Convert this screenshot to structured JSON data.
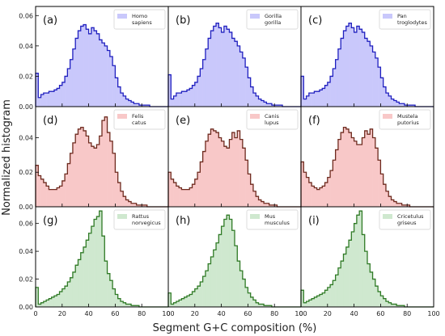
{
  "figure": {
    "ylabel": "Normalized histogram",
    "xlabel": "Segment G+C composition (%)"
  },
  "colors": {
    "primates_fill": "#c9c8fb",
    "primates_line": "#1f1fbf",
    "carnivores_fill": "#f8c8c8",
    "carnivores_line": "#6e2a1e",
    "rodents_fill": "#cfe8cf",
    "rodents_line": "#2f7a25"
  },
  "chart_data": [
    {
      "type": "area",
      "panel": "(a)",
      "row": 0,
      "col": 0,
      "group": "primates",
      "legend": [
        "Homo",
        "sapiens"
      ],
      "xlim": [
        0,
        100
      ],
      "ylim": [
        0,
        0.066
      ],
      "yticks": [
        "0.00",
        "0.02",
        "0.04",
        "0.06"
      ],
      "ytick_values": [
        0,
        0.02,
        0.04,
        0.06
      ],
      "xticks": [],
      "bin_width": 2,
      "x": [
        0,
        2,
        4,
        6,
        8,
        10,
        12,
        14,
        16,
        18,
        20,
        22,
        24,
        26,
        28,
        30,
        32,
        34,
        36,
        38,
        40,
        42,
        44,
        46,
        48,
        50,
        52,
        54,
        56,
        58,
        60,
        62,
        64,
        66,
        68,
        70,
        72,
        74,
        76,
        78,
        80,
        82,
        84,
        86,
        88,
        90,
        92,
        94,
        96,
        98
      ],
      "values": [
        0.022,
        0.006,
        0.008,
        0.009,
        0.009,
        0.01,
        0.01,
        0.011,
        0.012,
        0.014,
        0.016,
        0.02,
        0.025,
        0.031,
        0.038,
        0.045,
        0.05,
        0.053,
        0.054,
        0.051,
        0.048,
        0.052,
        0.05,
        0.048,
        0.044,
        0.042,
        0.04,
        0.037,
        0.033,
        0.027,
        0.019,
        0.013,
        0.009,
        0.007,
        0.005,
        0.004,
        0.003,
        0.002,
        0.002,
        0.001,
        0.001,
        0.001,
        0.001,
        0.0,
        0.0,
        0.0,
        0.0,
        0.0,
        0.0,
        0.0
      ]
    },
    {
      "type": "area",
      "panel": "(b)",
      "row": 0,
      "col": 1,
      "group": "primates",
      "legend": [
        "Gorilla",
        "gorilla"
      ],
      "xlim": [
        0,
        100
      ],
      "ylim": [
        0,
        0.066
      ],
      "yticks": [],
      "ytick_values": [],
      "xticks": [],
      "bin_width": 2,
      "x": [
        0,
        2,
        4,
        6,
        8,
        10,
        12,
        14,
        16,
        18,
        20,
        22,
        24,
        26,
        28,
        30,
        32,
        34,
        36,
        38,
        40,
        42,
        44,
        46,
        48,
        50,
        52,
        54,
        56,
        58,
        60,
        62,
        64,
        66,
        68,
        70,
        72,
        74,
        76,
        78,
        80,
        82,
        84,
        86,
        88,
        90,
        92,
        94,
        96,
        98
      ],
      "values": [
        0.021,
        0.005,
        0.007,
        0.009,
        0.009,
        0.01,
        0.01,
        0.011,
        0.012,
        0.014,
        0.016,
        0.02,
        0.025,
        0.031,
        0.038,
        0.045,
        0.05,
        0.053,
        0.055,
        0.052,
        0.049,
        0.053,
        0.051,
        0.049,
        0.045,
        0.043,
        0.04,
        0.036,
        0.032,
        0.026,
        0.019,
        0.013,
        0.009,
        0.007,
        0.005,
        0.004,
        0.003,
        0.002,
        0.002,
        0.001,
        0.001,
        0.001,
        0.001,
        0.0,
        0.0,
        0.0,
        0.0,
        0.0,
        0.0,
        0.0
      ]
    },
    {
      "type": "area",
      "panel": "(c)",
      "row": 0,
      "col": 2,
      "group": "primates",
      "legend": [
        "Pan",
        "troglodytes"
      ],
      "xlim": [
        0,
        100
      ],
      "ylim": [
        0,
        0.066
      ],
      "yticks": [],
      "ytick_values": [],
      "xticks": [],
      "bin_width": 2,
      "x": [
        0,
        2,
        4,
        6,
        8,
        10,
        12,
        14,
        16,
        18,
        20,
        22,
        24,
        26,
        28,
        30,
        32,
        34,
        36,
        38,
        40,
        42,
        44,
        46,
        48,
        50,
        52,
        54,
        56,
        58,
        60,
        62,
        64,
        66,
        68,
        70,
        72,
        74,
        76,
        78,
        80,
        82,
        84,
        86,
        88,
        90,
        92,
        94,
        96,
        98
      ],
      "values": [
        0.02,
        0.005,
        0.007,
        0.009,
        0.009,
        0.01,
        0.01,
        0.011,
        0.012,
        0.014,
        0.016,
        0.02,
        0.025,
        0.031,
        0.038,
        0.045,
        0.05,
        0.053,
        0.055,
        0.052,
        0.049,
        0.053,
        0.051,
        0.049,
        0.045,
        0.043,
        0.04,
        0.036,
        0.032,
        0.026,
        0.019,
        0.013,
        0.009,
        0.007,
        0.005,
        0.004,
        0.003,
        0.002,
        0.002,
        0.001,
        0.001,
        0.001,
        0.001,
        0.0,
        0.0,
        0.0,
        0.0,
        0.0,
        0.0,
        0.0
      ]
    },
    {
      "type": "area",
      "panel": "(d)",
      "row": 1,
      "col": 0,
      "group": "carnivores",
      "legend": [
        "Felis",
        "catus"
      ],
      "xlim": [
        0,
        100
      ],
      "ylim": [
        0,
        0.058
      ],
      "yticks": [
        "0.00",
        "0.02",
        "0.04"
      ],
      "ytick_values": [
        0,
        0.02,
        0.04
      ],
      "xticks": [],
      "bin_width": 2,
      "x": [
        0,
        2,
        4,
        6,
        8,
        10,
        12,
        14,
        16,
        18,
        20,
        22,
        24,
        26,
        28,
        30,
        32,
        34,
        36,
        38,
        40,
        42,
        44,
        46,
        48,
        50,
        52,
        54,
        56,
        58,
        60,
        62,
        64,
        66,
        68,
        70,
        72,
        74,
        76,
        78,
        80,
        82,
        84,
        86,
        88,
        90,
        92,
        94,
        96,
        98
      ],
      "values": [
        0.024,
        0.018,
        0.016,
        0.014,
        0.012,
        0.01,
        0.01,
        0.01,
        0.011,
        0.012,
        0.015,
        0.019,
        0.025,
        0.031,
        0.037,
        0.042,
        0.045,
        0.046,
        0.044,
        0.041,
        0.037,
        0.035,
        0.034,
        0.036,
        0.041,
        0.05,
        0.052,
        0.043,
        0.038,
        0.031,
        0.02,
        0.014,
        0.009,
        0.006,
        0.004,
        0.003,
        0.002,
        0.002,
        0.001,
        0.001,
        0.001,
        0.001,
        0.0,
        0.0,
        0.0,
        0.0,
        0.0,
        0.0,
        0.0,
        0.0
      ]
    },
    {
      "type": "area",
      "panel": "(e)",
      "row": 1,
      "col": 1,
      "group": "carnivores",
      "legend": [
        "Canis",
        "lupus"
      ],
      "xlim": [
        0,
        100
      ],
      "ylim": [
        0,
        0.058
      ],
      "yticks": [],
      "ytick_values": [],
      "xticks": [],
      "bin_width": 2,
      "x": [
        0,
        2,
        4,
        6,
        8,
        10,
        12,
        14,
        16,
        18,
        20,
        22,
        24,
        26,
        28,
        30,
        32,
        34,
        36,
        38,
        40,
        42,
        44,
        46,
        48,
        50,
        52,
        54,
        56,
        58,
        60,
        62,
        64,
        66,
        68,
        70,
        72,
        74,
        76,
        78,
        80,
        82,
        84,
        86,
        88,
        90,
        92,
        94,
        96,
        98
      ],
      "values": [
        0.02,
        0.016,
        0.014,
        0.012,
        0.011,
        0.01,
        0.01,
        0.01,
        0.011,
        0.013,
        0.016,
        0.02,
        0.026,
        0.032,
        0.038,
        0.042,
        0.045,
        0.044,
        0.043,
        0.04,
        0.038,
        0.035,
        0.034,
        0.039,
        0.043,
        0.04,
        0.044,
        0.039,
        0.034,
        0.027,
        0.019,
        0.013,
        0.009,
        0.006,
        0.004,
        0.003,
        0.002,
        0.002,
        0.001,
        0.001,
        0.001,
        0.0,
        0.0,
        0.0,
        0.0,
        0.0,
        0.0,
        0.0,
        0.0,
        0.0
      ]
    },
    {
      "type": "area",
      "panel": "(f)",
      "row": 1,
      "col": 2,
      "group": "carnivores",
      "legend": [
        "Mustela",
        "putorius"
      ],
      "xlim": [
        0,
        100
      ],
      "ylim": [
        0,
        0.058
      ],
      "yticks": [],
      "ytick_values": [],
      "xticks": [],
      "bin_width": 2,
      "x": [
        0,
        2,
        4,
        6,
        8,
        10,
        12,
        14,
        16,
        18,
        20,
        22,
        24,
        26,
        28,
        30,
        32,
        34,
        36,
        38,
        40,
        42,
        44,
        46,
        48,
        50,
        52,
        54,
        56,
        58,
        60,
        62,
        64,
        66,
        68,
        70,
        72,
        74,
        76,
        78,
        80,
        82,
        84,
        86,
        88,
        90,
        92,
        94,
        96,
        98
      ],
      "values": [
        0.026,
        0.02,
        0.017,
        0.014,
        0.012,
        0.011,
        0.01,
        0.011,
        0.012,
        0.014,
        0.017,
        0.021,
        0.027,
        0.033,
        0.039,
        0.043,
        0.046,
        0.045,
        0.043,
        0.04,
        0.038,
        0.036,
        0.036,
        0.04,
        0.044,
        0.042,
        0.045,
        0.04,
        0.034,
        0.027,
        0.019,
        0.013,
        0.009,
        0.006,
        0.004,
        0.003,
        0.002,
        0.002,
        0.001,
        0.001,
        0.001,
        0.0,
        0.0,
        0.0,
        0.0,
        0.0,
        0.0,
        0.0,
        0.0,
        0.0
      ]
    },
    {
      "type": "area",
      "panel": "(g)",
      "row": 2,
      "col": 0,
      "group": "rodents",
      "legend": [
        "Rattus",
        "norvegicus"
      ],
      "xlim": [
        0,
        100
      ],
      "ylim": [
        0,
        0.072
      ],
      "yticks": [
        "0.00",
        "0.02",
        "0.04",
        "0.06"
      ],
      "ytick_values": [
        0,
        0.02,
        0.04,
        0.06
      ],
      "xticks": [
        "0",
        "20",
        "40",
        "60",
        "80",
        "100"
      ],
      "xtick_values": [
        0,
        20,
        40,
        60,
        80,
        100
      ],
      "bin_width": 2,
      "x": [
        0,
        2,
        4,
        6,
        8,
        10,
        12,
        14,
        16,
        18,
        20,
        22,
        24,
        26,
        28,
        30,
        32,
        34,
        36,
        38,
        40,
        42,
        44,
        46,
        48,
        50,
        52,
        54,
        56,
        58,
        60,
        62,
        64,
        66,
        68,
        70,
        72,
        74,
        76,
        78,
        80,
        82,
        84,
        86,
        88,
        90,
        92,
        94,
        96,
        98
      ],
      "values": [
        0.014,
        0.002,
        0.003,
        0.004,
        0.005,
        0.006,
        0.007,
        0.008,
        0.009,
        0.011,
        0.013,
        0.015,
        0.018,
        0.021,
        0.025,
        0.03,
        0.034,
        0.039,
        0.043,
        0.048,
        0.053,
        0.058,
        0.063,
        0.065,
        0.069,
        0.051,
        0.033,
        0.024,
        0.019,
        0.013,
        0.009,
        0.006,
        0.004,
        0.003,
        0.002,
        0.002,
        0.001,
        0.001,
        0.001,
        0.0,
        0.0,
        0.0,
        0.0,
        0.0,
        0.0,
        0.0,
        0.0,
        0.0,
        0.0,
        0.0
      ]
    },
    {
      "type": "area",
      "panel": "(h)",
      "row": 2,
      "col": 1,
      "group": "rodents",
      "legend": [
        "Mus",
        "musculus"
      ],
      "xlim": [
        0,
        100
      ],
      "ylim": [
        0,
        0.072
      ],
      "yticks": [],
      "ytick_values": [],
      "xticks": [
        "0",
        "20",
        "40",
        "60",
        "80",
        "100"
      ],
      "xtick_values": [
        0,
        20,
        40,
        60,
        80,
        100
      ],
      "bin_width": 2,
      "x": [
        0,
        2,
        4,
        6,
        8,
        10,
        12,
        14,
        16,
        18,
        20,
        22,
        24,
        26,
        28,
        30,
        32,
        34,
        36,
        38,
        40,
        42,
        44,
        46,
        48,
        50,
        52,
        54,
        56,
        58,
        60,
        62,
        64,
        66,
        68,
        70,
        72,
        74,
        76,
        78,
        80,
        82,
        84,
        86,
        88,
        90,
        92,
        94,
        96,
        98
      ],
      "values": [
        0.01,
        0.002,
        0.003,
        0.004,
        0.005,
        0.006,
        0.007,
        0.008,
        0.009,
        0.011,
        0.013,
        0.015,
        0.018,
        0.022,
        0.026,
        0.031,
        0.036,
        0.041,
        0.046,
        0.052,
        0.058,
        0.063,
        0.066,
        0.063,
        0.055,
        0.044,
        0.033,
        0.026,
        0.02,
        0.014,
        0.01,
        0.007,
        0.005,
        0.003,
        0.002,
        0.002,
        0.001,
        0.001,
        0.001,
        0.0,
        0.0,
        0.0,
        0.0,
        0.0,
        0.0,
        0.0,
        0.0,
        0.0,
        0.0,
        0.0
      ]
    },
    {
      "type": "area",
      "panel": "(i)",
      "row": 2,
      "col": 2,
      "group": "rodents",
      "legend": [
        "Cricetulus",
        "griseus"
      ],
      "xlim": [
        0,
        100
      ],
      "ylim": [
        0,
        0.072
      ],
      "yticks": [],
      "ytick_values": [],
      "xticks": [
        "0",
        "20",
        "40",
        "60",
        "80",
        "100"
      ],
      "xtick_values": [
        0,
        20,
        40,
        60,
        80,
        100
      ],
      "bin_width": 2,
      "x": [
        0,
        2,
        4,
        6,
        8,
        10,
        12,
        14,
        16,
        18,
        20,
        22,
        24,
        26,
        28,
        30,
        32,
        34,
        36,
        38,
        40,
        42,
        44,
        46,
        48,
        50,
        52,
        54,
        56,
        58,
        60,
        62,
        64,
        66,
        68,
        70,
        72,
        74,
        76,
        78,
        80,
        82,
        84,
        86,
        88,
        90,
        92,
        94,
        96,
        98
      ],
      "values": [
        0.012,
        0.003,
        0.004,
        0.005,
        0.006,
        0.007,
        0.008,
        0.009,
        0.01,
        0.012,
        0.014,
        0.016,
        0.019,
        0.023,
        0.028,
        0.033,
        0.038,
        0.043,
        0.048,
        0.054,
        0.06,
        0.066,
        0.069,
        0.052,
        0.04,
        0.031,
        0.025,
        0.02,
        0.015,
        0.011,
        0.008,
        0.006,
        0.004,
        0.003,
        0.002,
        0.002,
        0.001,
        0.001,
        0.001,
        0.0,
        0.0,
        0.0,
        0.0,
        0.0,
        0.0,
        0.0,
        0.0,
        0.0,
        0.0,
        0.0
      ]
    }
  ]
}
